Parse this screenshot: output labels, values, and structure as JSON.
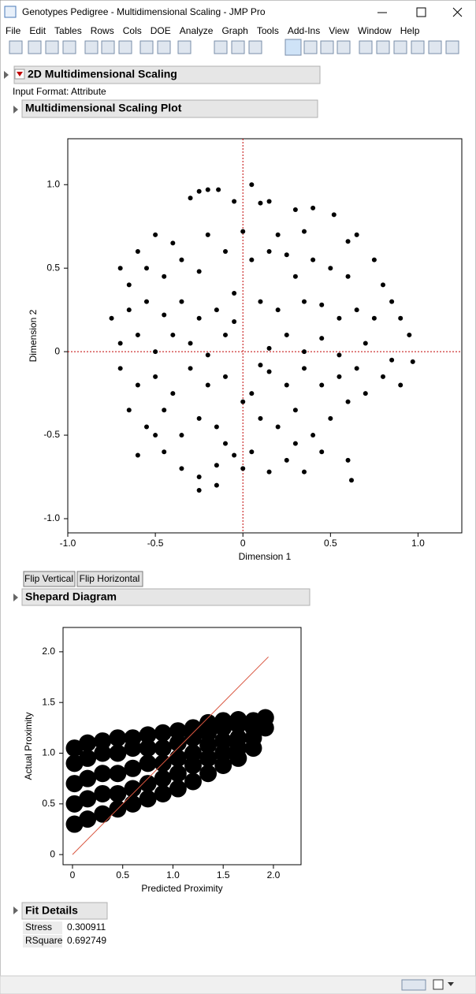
{
  "window": {
    "title": "Genotypes Pedigree - Multidimensional Scaling - JMP Pro"
  },
  "menu": [
    "File",
    "Edit",
    "Tables",
    "Rows",
    "Cols",
    "DOE",
    "Analyze",
    "Graph",
    "Tools",
    "Add-Ins",
    "View",
    "Window",
    "Help"
  ],
  "report": {
    "title": "2D Multidimensional Scaling",
    "input_format": "Input Format: Attribute",
    "plot_title": "Multidimensional Scaling Plot",
    "buttons": [
      "Flip Vertical",
      "Flip Horizontal"
    ],
    "shepard_title": "Shepard Diagram",
    "fit_title": "Fit Details",
    "fit_rows": [
      [
        "Stress",
        0.300911
      ],
      [
        "RSquare",
        0.692749
      ]
    ]
  },
  "chart_data": [
    {
      "type": "scatter",
      "xlabel": "Dimension 1",
      "ylabel": "Dimension 2",
      "xlim": [
        -1.0,
        1.25
      ],
      "ylim": [
        -1.085,
        1.275
      ],
      "xticks": [
        {
          "value": -1,
          "label": "-1.0"
        },
        -0.5,
        0,
        0.5,
        {
          "value": 1,
          "label": "1.0"
        }
      ],
      "yticks": [
        {
          "value": -1,
          "label": "-1.0"
        },
        -0.5,
        0,
        0.5,
        {
          "value": 1,
          "label": "1.0"
        }
      ],
      "color": "#000000",
      "reference_lines": {
        "x": 0,
        "y": 0,
        "color": "#c00000"
      },
      "x": [
        -0.3,
        -0.25,
        -0.2,
        -0.14,
        0.05,
        0.1,
        0.15,
        -0.05,
        0.3,
        0.4,
        0.52,
        0.65,
        0.6,
        -0.5,
        -0.6,
        -0.4,
        -0.2,
        0.0,
        0.2,
        0.35,
        -0.7,
        -0.65,
        -0.55,
        -0.45,
        -0.35,
        -0.25,
        -0.1,
        0.05,
        0.15,
        0.25,
        0.4,
        0.5,
        0.6,
        0.8,
        0.85,
        0.9,
        -0.75,
        -0.65,
        -0.55,
        -0.45,
        -0.35,
        -0.25,
        -0.15,
        -0.05,
        0.1,
        0.2,
        0.35,
        0.45,
        0.55,
        0.65,
        0.75,
        0.95,
        -0.7,
        -0.6,
        -0.5,
        -0.4,
        -0.3,
        -0.2,
        -0.1,
        0.15,
        0.25,
        0.35,
        0.45,
        0.55,
        0.7,
        0.85,
        0.97,
        -0.7,
        -0.6,
        -0.5,
        -0.4,
        -0.3,
        -0.2,
        -0.1,
        0.05,
        0.15,
        0.25,
        0.35,
        0.45,
        0.55,
        0.65,
        0.8,
        0.9,
        -0.65,
        -0.55,
        -0.45,
        -0.35,
        -0.25,
        -0.15,
        0.0,
        0.1,
        0.2,
        0.3,
        0.4,
        0.5,
        0.6,
        0.7,
        -0.6,
        -0.45,
        -0.35,
        -0.25,
        -0.15,
        -0.05,
        0.05,
        0.15,
        0.25,
        0.35,
        0.45,
        0.6,
        0.62,
        -0.25,
        -0.15,
        0.0,
        0.3,
        -0.1,
        0.1,
        -0.05,
        0.3,
        -0.5,
        0.75
      ],
      "y": [
        0.92,
        0.96,
        0.97,
        0.97,
        1.0,
        0.89,
        0.9,
        0.9,
        0.85,
        0.86,
        0.82,
        0.7,
        0.66,
        0.7,
        0.6,
        0.65,
        0.7,
        0.72,
        0.7,
        0.72,
        0.5,
        0.4,
        0.5,
        0.45,
        0.55,
        0.48,
        0.6,
        0.55,
        0.6,
        0.58,
        0.55,
        0.5,
        0.45,
        0.4,
        0.3,
        0.2,
        0.2,
        0.25,
        0.3,
        0.22,
        0.3,
        0.2,
        0.25,
        0.35,
        0.3,
        0.25,
        0.3,
        0.28,
        0.2,
        0.25,
        0.2,
        0.1,
        0.05,
        0.1,
        0.0,
        0.1,
        0.05,
        -0.02,
        0.1,
        0.02,
        0.1,
        0.0,
        0.08,
        -0.02,
        0.05,
        -0.05,
        -0.06,
        -0.1,
        -0.2,
        -0.15,
        -0.25,
        -0.1,
        -0.2,
        -0.15,
        -0.25,
        -0.12,
        -0.2,
        -0.1,
        -0.2,
        -0.15,
        -0.1,
        -0.15,
        -0.2,
        -0.35,
        -0.45,
        -0.35,
        -0.5,
        -0.4,
        -0.45,
        -0.3,
        -0.4,
        -0.45,
        -0.35,
        -0.5,
        -0.4,
        -0.3,
        -0.25,
        -0.62,
        -0.6,
        -0.7,
        -0.75,
        -0.68,
        -0.62,
        -0.6,
        -0.72,
        -0.65,
        -0.72,
        -0.6,
        -0.65,
        -0.77,
        -0.83,
        -0.8,
        -0.7,
        -0.55,
        -0.55,
        -0.08,
        0.18,
        0.45,
        -0.5,
        0.55
      ]
    },
    {
      "type": "scatter",
      "xlabel": "Predicted Proximity",
      "ylabel": "Actual Proximity",
      "xlim": [
        -0.094,
        2.275
      ],
      "ylim": [
        -0.1,
        2.24
      ],
      "xticks": [
        0,
        0.5,
        {
          "value": 1,
          "label": "1.0"
        },
        1.5,
        {
          "value": 2,
          "label": "2.0"
        }
      ],
      "yticks": [
        0,
        0.5,
        {
          "value": 1,
          "label": "1.0"
        },
        1.5,
        {
          "value": 2,
          "label": "2.0"
        }
      ],
      "color": "#000000",
      "fit_line": {
        "x": [
          0,
          1.95
        ],
        "y": [
          0,
          1.95
        ],
        "color": "#d9553f"
      },
      "x": [
        0.02,
        0.02,
        0.02,
        0.02,
        0.02,
        0.15,
        0.15,
        0.15,
        0.15,
        0.15,
        0.3,
        0.3,
        0.3,
        0.3,
        0.3,
        0.45,
        0.45,
        0.45,
        0.45,
        0.45,
        0.6,
        0.6,
        0.6,
        0.6,
        0.6,
        0.75,
        0.75,
        0.75,
        0.75,
        0.75,
        0.9,
        0.9,
        0.9,
        0.9,
        0.9,
        1.05,
        1.05,
        1.05,
        1.05,
        1.05,
        1.2,
        1.2,
        1.2,
        1.2,
        1.2,
        1.35,
        1.35,
        1.35,
        1.35,
        1.35,
        1.5,
        1.5,
        1.5,
        1.5,
        1.5,
        1.65,
        1.65,
        1.65,
        1.65,
        1.65,
        1.8,
        1.8,
        1.8,
        1.8,
        1.92,
        1.92
      ],
      "y": [
        0.3,
        0.5,
        0.7,
        0.9,
        1.05,
        0.35,
        0.55,
        0.75,
        0.95,
        1.1,
        0.4,
        0.6,
        0.8,
        1.0,
        1.12,
        0.45,
        0.6,
        0.8,
        1.0,
        1.15,
        0.5,
        0.65,
        0.85,
        1.05,
        1.15,
        0.55,
        0.7,
        0.9,
        1.05,
        1.18,
        0.6,
        0.75,
        0.9,
        1.05,
        1.2,
        0.65,
        0.8,
        0.95,
        1.1,
        1.22,
        0.72,
        0.88,
        1.0,
        1.15,
        1.25,
        0.8,
        0.95,
        1.08,
        1.2,
        1.3,
        0.88,
        1.0,
        1.12,
        1.25,
        1.32,
        0.95,
        1.05,
        1.15,
        1.28,
        1.33,
        1.05,
        1.15,
        1.25,
        1.32,
        1.25,
        1.35
      ]
    }
  ]
}
